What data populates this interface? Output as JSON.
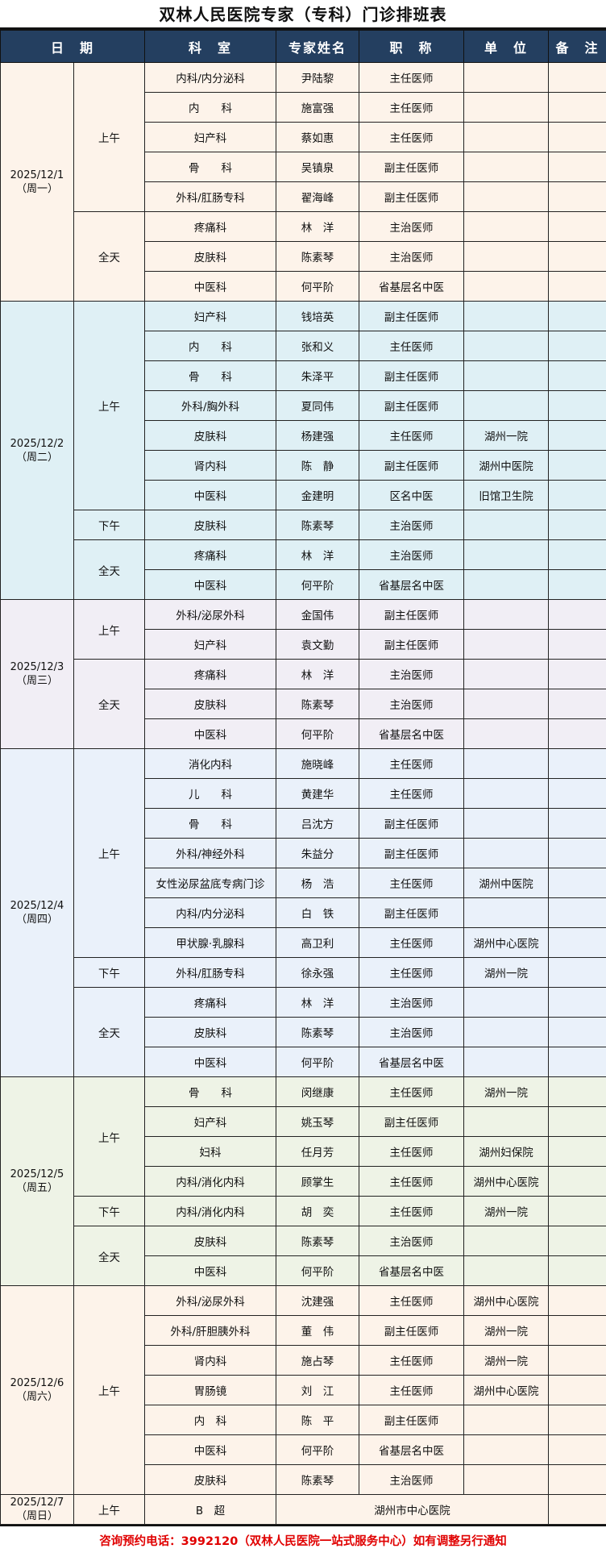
{
  "title": "双林人民医院专家（专科）门诊排班表",
  "headers": [
    "日　期",
    "科　室",
    "专家姓名",
    "职　称",
    "单　位",
    "备　注"
  ],
  "colors": {
    "header_bg": "#243f60",
    "footer_text": "#e00000"
  },
  "days": [
    {
      "date": "2025/12/1",
      "weekday": "（周一）",
      "bg": "#fdf3ea",
      "sessions": [
        {
          "label": "上午",
          "rows": [
            [
              "内科/内分泌科",
              "尹陆黎",
              "主任医师",
              ""
            ],
            [
              "内　　科",
              "施富强",
              "主任医师",
              ""
            ],
            [
              "妇产科",
              "蔡如惠",
              "主任医师",
              ""
            ],
            [
              "骨　　科",
              "吴镇泉",
              "副主任医师",
              ""
            ],
            [
              "外科/肛肠专科",
              "翟海峰",
              "副主任医师",
              ""
            ]
          ]
        },
        {
          "label": "全天",
          "rows": [
            [
              "疼痛科",
              "林　洋",
              "主治医师",
              ""
            ],
            [
              "皮肤科",
              "陈素琴",
              "主治医师",
              ""
            ],
            [
              "中医科",
              "何平阶",
              "省基层名中医",
              ""
            ]
          ]
        }
      ]
    },
    {
      "date": "2025/12/2",
      "weekday": "（周二）",
      "bg": "#dff0f5",
      "sessions": [
        {
          "label": "上午",
          "rows": [
            [
              "妇产科",
              "钱培英",
              "副主任医师",
              ""
            ],
            [
              "内　　科",
              "张和义",
              "主任医师",
              ""
            ],
            [
              "骨　　科",
              "朱泽平",
              "副主任医师",
              ""
            ],
            [
              "外科/胸外科",
              "夏同伟",
              "副主任医师",
              ""
            ],
            [
              "皮肤科",
              "杨建强",
              "主任医师",
              "湖州一院"
            ],
            [
              "肾内科",
              "陈　静",
              "副主任医师",
              "湖州中医院"
            ],
            [
              "中医科",
              "金建明",
              "区名中医",
              "旧馆卫生院"
            ]
          ]
        },
        {
          "label": "下午",
          "rows": [
            [
              "皮肤科",
              "陈素琴",
              "主治医师",
              ""
            ]
          ]
        },
        {
          "label": "全天",
          "rows": [
            [
              "疼痛科",
              "林　洋",
              "主治医师",
              ""
            ],
            [
              "中医科",
              "何平阶",
              "省基层名中医",
              ""
            ]
          ]
        }
      ]
    },
    {
      "date": "2025/12/3",
      "weekday": "（周三）",
      "bg": "#f1eef5",
      "sessions": [
        {
          "label": "上午",
          "rows": [
            [
              "外科/泌尿外科",
              "金国伟",
              "副主任医师",
              ""
            ],
            [
              "妇产科",
              "袁文勤",
              "副主任医师",
              ""
            ]
          ]
        },
        {
          "label": "全天",
          "rows": [
            [
              "疼痛科",
              "林　洋",
              "主治医师",
              ""
            ],
            [
              "皮肤科",
              "陈素琴",
              "主治医师",
              ""
            ],
            [
              "中医科",
              "何平阶",
              "省基层名中医",
              ""
            ]
          ]
        }
      ]
    },
    {
      "date": "2025/12/4",
      "weekday": "（周四）",
      "bg": "#eaf1fa",
      "sessions": [
        {
          "label": "上午",
          "rows": [
            [
              "消化内科",
              "施晓峰",
              "主任医师",
              ""
            ],
            [
              "儿　　科",
              "黄建华",
              "主任医师",
              ""
            ],
            [
              "骨　　科",
              "吕沈方",
              "副主任医师",
              ""
            ],
            [
              "外科/神经外科",
              "朱益分",
              "副主任医师",
              ""
            ],
            [
              "女性泌尿盆底专病门诊",
              "杨　浩",
              "主任医师",
              "湖州中医院"
            ],
            [
              "内科/内分泌科",
              "白　铁",
              "副主任医师",
              ""
            ],
            [
              "甲状腺·乳腺科",
              "高卫利",
              "主任医师",
              "湖州中心医院"
            ]
          ]
        },
        {
          "label": "下午",
          "rows": [
            [
              "外科/肛肠专科",
              "徐永强",
              "主任医师",
              "湖州一院"
            ]
          ]
        },
        {
          "label": "全天",
          "rows": [
            [
              "疼痛科",
              "林　洋",
              "主治医师",
              ""
            ],
            [
              "皮肤科",
              "陈素琴",
              "主治医师",
              ""
            ],
            [
              "中医科",
              "何平阶",
              "省基层名中医",
              ""
            ]
          ]
        }
      ]
    },
    {
      "date": "2025/12/5",
      "weekday": "（周五）",
      "bg": "#eef3e6",
      "sessions": [
        {
          "label": "上午",
          "rows": [
            [
              "骨　　科",
              "闵继康",
              "主任医师",
              "湖州一院"
            ],
            [
              "妇产科",
              "姚玉琴",
              "副主任医师",
              ""
            ],
            [
              "妇科",
              "任月芳",
              "主任医师",
              "湖州妇保院"
            ],
            [
              "内科/消化内科",
              "顾掌生",
              "主任医师",
              "湖州中心医院"
            ]
          ]
        },
        {
          "label": "下午",
          "rows": [
            [
              "内科/消化内科",
              "胡　奕",
              "主任医师",
              "湖州一院"
            ]
          ]
        },
        {
          "label": "全天",
          "rows": [
            [
              "皮肤科",
              "陈素琴",
              "主治医师",
              ""
            ],
            [
              "中医科",
              "何平阶",
              "省基层名中医",
              ""
            ]
          ]
        }
      ]
    },
    {
      "date": "2025/12/6",
      "weekday": "（周六）",
      "bg": "#fdf3ea",
      "sessions": [
        {
          "label": "上午",
          "rows": [
            [
              "外科/泌尿外科",
              "沈建强",
              "主任医师",
              "湖州中心医院"
            ],
            [
              "外科/肝胆胰外科",
              "董　伟",
              "副主任医师",
              "湖州一院"
            ],
            [
              "肾内科",
              "施占琴",
              "主任医师",
              "湖州一院"
            ],
            [
              "胃肠镜",
              "刘　江",
              "主任医师",
              "湖州中心医院"
            ],
            [
              "内　科",
              "陈　平",
              "副主任医师",
              ""
            ],
            [
              "中医科",
              "何平阶",
              "省基层名中医",
              ""
            ],
            [
              "皮肤科",
              "陈素琴",
              "主治医师",
              ""
            ]
          ]
        }
      ]
    },
    {
      "date": "2025/12/7",
      "weekday": "（周日）",
      "bg": "#fdf3ea",
      "sessions": [
        {
          "label": "上午",
          "rows": [
            [
              "B　超",
              "湖州市中心医院"
            ]
          ]
        }
      ]
    }
  ],
  "footer": "咨询预约电话：3992120（双林人民医院一站式服务中心）如有调整另行通知"
}
